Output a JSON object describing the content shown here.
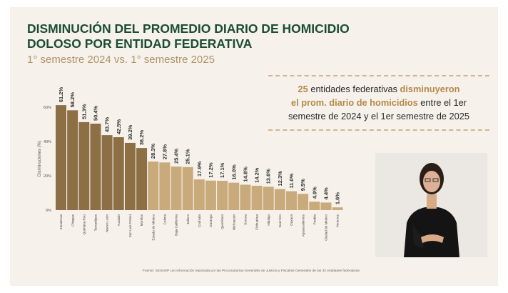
{
  "header": {
    "title": "DISMINUCIÓN DEL PROMEDIO DIARIO DE HOMICIDIO DOLOSO POR ENTIDAD FEDERATIVA",
    "subtitle": "1° semestre 2024 vs. 1° semestre 2025"
  },
  "callout": {
    "count": "25",
    "part1": "entidades federativas",
    "accent1": "disminuyeron",
    "accent2": "el prom. diario de homicidios",
    "part2": "entre el 1er",
    "line3": "semestre de 2024 y el 1er semestre de 2025"
  },
  "source": "Fuente: SESNSP con información reportada por las Procuradurías Generales de Justicia y Fiscalías Generales de las 32 entidades federativas",
  "colors": {
    "bar_dark": "#8d6f46",
    "bar_light": "#c9aa7b",
    "title": "#1c4d33",
    "accent": "#b4894a"
  },
  "chart_data": {
    "type": "bar",
    "ylabel": "Disminuciones (%)",
    "ylim": [
      0,
      65
    ],
    "yticks": [
      0,
      20,
      40,
      60
    ],
    "ytick_labels": [
      "0%",
      "20%",
      "40%",
      "60%"
    ],
    "grid": false,
    "categories": [
      "Zacatecas",
      "Chiapas",
      "Quintana Roo",
      "Tamaulipas",
      "Nuevo León",
      "Yucatán",
      "San Luis Potosí",
      "Morelos",
      "Estado de México",
      "Colima",
      "Baja California",
      "Jalisco",
      "Coahuila",
      "Durango",
      "Querétaro",
      "Michoacán",
      "Sonora",
      "Chihuahua",
      "Hidalgo",
      "Guerrero",
      "Oaxaca",
      "Aguascalientes",
      "Puebla",
      "Ciudad de México",
      "Veracruz"
    ],
    "values": [
      61.2,
      58.2,
      51.3,
      50.4,
      43.7,
      42.5,
      39.2,
      36.2,
      28.3,
      27.8,
      25.4,
      25.1,
      17.9,
      17.2,
      17.1,
      16.0,
      14.8,
      14.2,
      13.6,
      12.3,
      11.0,
      9.5,
      4.9,
      4.4,
      1.6
    ],
    "labels": [
      "61.2%",
      "58.2%",
      "51.3%",
      "50.4%",
      "43.7%",
      "42.5%",
      "39.2%",
      "36.2%",
      "28.3%",
      "27.8%",
      "25.4%",
      "25.1%",
      "17.9%",
      "17.2%",
      "17.1%",
      "16.0%",
      "14.8%",
      "14.2%",
      "13.6%",
      "12.3%",
      "11.0%",
      "9.5%",
      "4.9%",
      "4.4%",
      "1.6%"
    ]
  }
}
